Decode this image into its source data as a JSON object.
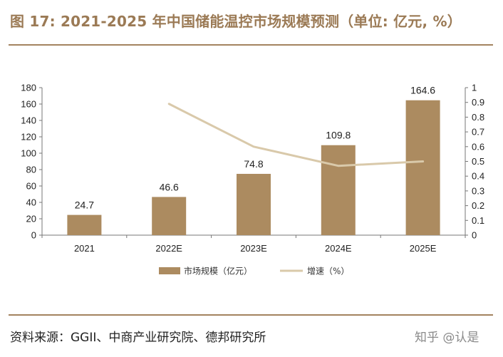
{
  "header": {
    "title": "图 17: 2021-2025 年中国储能温控市场规模预测（单位: 亿元, %）"
  },
  "footer": {
    "source": "资料来源：GGII、中商产业研究院、德邦研究所",
    "watermark": "知乎 @认是"
  },
  "colors": {
    "bar": "#ac8b60",
    "line": "#d9c9aa",
    "title": "#9b7a55",
    "rule": "#a3835f"
  },
  "chart_data": {
    "type": "bar",
    "title": "",
    "xlabel": "",
    "ylabel": "",
    "categories": [
      "2021",
      "2022E",
      "2023E",
      "2024E",
      "2025E"
    ],
    "series": [
      {
        "name": "市场规模（亿元）",
        "type": "bar",
        "axis": "left",
        "values": [
          24.7,
          46.6,
          74.8,
          109.8,
          164.6
        ],
        "labels": [
          "24.7",
          "46.6",
          "74.8",
          "109.8",
          "164.6"
        ]
      },
      {
        "name": "增速（%）",
        "type": "line",
        "axis": "right",
        "values": [
          null,
          0.89,
          0.6,
          0.47,
          0.5
        ]
      }
    ],
    "ylim": [
      0,
      180
    ],
    "yticks": [
      "0",
      "20",
      "40",
      "60",
      "80",
      "100",
      "120",
      "140",
      "160",
      "180"
    ],
    "y2lim": [
      0,
      1
    ],
    "y2ticks": [
      "0",
      "0.1",
      "0.2",
      "0.3",
      "0.4",
      "0.5",
      "0.6",
      "0.7",
      "0.8",
      "0.9",
      "1"
    ],
    "grid": false,
    "legend": "bottom"
  }
}
